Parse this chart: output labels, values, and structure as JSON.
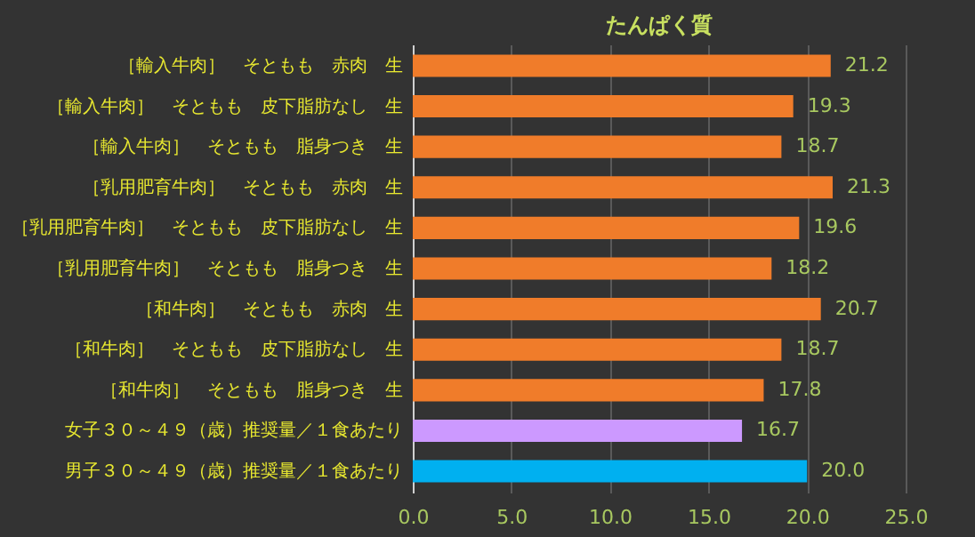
{
  "chart_data": {
    "type": "bar",
    "orientation": "horizontal",
    "title": "たんぱく質",
    "categories": [
      "［輸入牛肉］　そともも　赤肉　生",
      "［輸入牛肉］　そともも　皮下脂肪なし　生",
      "［輸入牛肉］　そともも　脂身つき　生",
      "［乳用肥育牛肉］　そともも　赤肉　生",
      "［乳用肥育牛肉］　そともも　皮下脂肪なし　生",
      "［乳用肥育牛肉］　そともも　脂身つき　生",
      "［和牛肉］　そともも　赤肉　生",
      "［和牛肉］　そともも　皮下脂肪なし　生",
      "［和牛肉］　そともも　脂身つき　生",
      "女子３０～４９（歳）推奨量／１食あたり",
      "男子３０～４９（歳）推奨量／１食あたり"
    ],
    "values": [
      21.2,
      19.3,
      18.7,
      21.3,
      19.6,
      18.2,
      20.7,
      18.7,
      17.8,
      16.7,
      20.0
    ],
    "colors": [
      "#f07c2a",
      "#f07c2a",
      "#f07c2a",
      "#f07c2a",
      "#f07c2a",
      "#f07c2a",
      "#f07c2a",
      "#f07c2a",
      "#f07c2a",
      "#cc99ff",
      "#00b0f0"
    ],
    "value_labels": [
      "21.2",
      "19.3",
      "18.7",
      "21.3",
      "19.6",
      "18.2",
      "20.7",
      "18.7",
      "17.8",
      "16.7",
      "20.0"
    ],
    "xlim": [
      0,
      25
    ],
    "xticks": [
      {
        "value": 0,
        "label": "0.0"
      },
      {
        "value": 5,
        "label": "5.0"
      },
      {
        "value": 10,
        "label": "10.0"
      },
      {
        "value": 15,
        "label": "15.0"
      },
      {
        "value": 20,
        "label": "20.0"
      },
      {
        "value": 25,
        "label": "25.0"
      }
    ],
    "grid": "x"
  }
}
